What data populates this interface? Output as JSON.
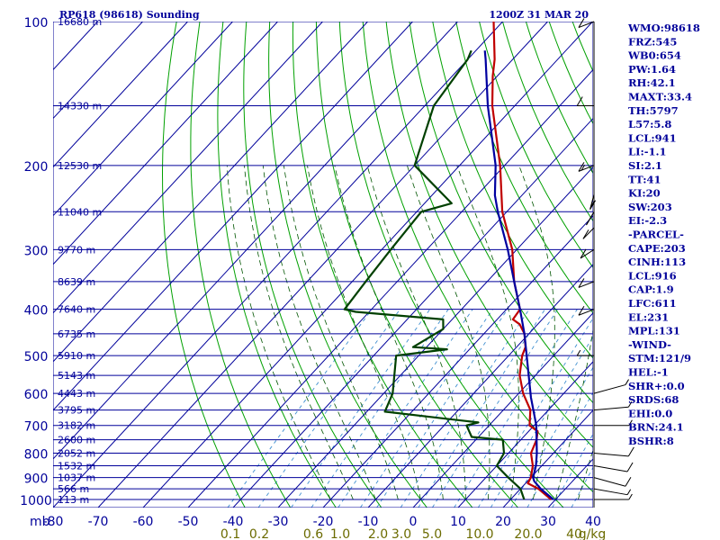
{
  "header": {
    "station": "RP618 (98618) Sounding",
    "time": "1200Z 31 MAR 20"
  },
  "chart_data": {
    "type": "line",
    "title": "RP618 (98618) Sounding",
    "pressure_axis": {
      "unit": "mb",
      "ticks": [
        100,
        200,
        300,
        400,
        500,
        600,
        700,
        800,
        900,
        1000
      ],
      "range": [
        100,
        1040
      ],
      "scale": "log"
    },
    "height_labels": [
      {
        "p": 100,
        "label": "16680 m"
      },
      {
        "p": 150,
        "label": "14330 m"
      },
      {
        "p": 200,
        "label": "12530 m"
      },
      {
        "p": 250,
        "label": "11040 m"
      },
      {
        "p": 300,
        "label": "9770 m"
      },
      {
        "p": 350,
        "label": "8639 m"
      },
      {
        "p": 400,
        "label": "7640 m"
      },
      {
        "p": 450,
        "label": "6735 m"
      },
      {
        "p": 500,
        "label": "5910 m"
      },
      {
        "p": 550,
        "label": "5143 m"
      },
      {
        "p": 600,
        "label": "4443 m"
      },
      {
        "p": 650,
        "label": "3795 m"
      },
      {
        "p": 700,
        "label": "3182 m"
      },
      {
        "p": 750,
        "label": "2600 m"
      },
      {
        "p": 800,
        "label": "2052 m"
      },
      {
        "p": 850,
        "label": "1532 m"
      },
      {
        "p": 900,
        "label": "1037 m"
      },
      {
        "p": 950,
        "label": "566 m"
      },
      {
        "p": 1000,
        "label": "113 m"
      }
    ],
    "temperature_axis": {
      "unit": "C",
      "range": [
        -80,
        40
      ],
      "ticks": [
        -80,
        -70,
        -60,
        -50,
        -40,
        -30,
        -20,
        -10,
        0,
        10,
        20,
        30,
        40
      ]
    },
    "mixing_ratio_labels": [
      "0.1",
      "0.2",
      "0.6",
      "1.0",
      "2.0",
      "3.0",
      "5.0",
      "10.0",
      "20.0",
      "40",
      "g/kg"
    ],
    "series": [
      {
        "name": "temperature",
        "color": "#c00000",
        "points": [
          {
            "p": 1000,
            "t": 29
          },
          {
            "p": 950,
            "t": 24
          },
          {
            "p": 925,
            "t": 20.5
          },
          {
            "p": 900,
            "t": 20
          },
          {
            "p": 850,
            "t": 18
          },
          {
            "p": 800,
            "t": 15
          },
          {
            "p": 750,
            "t": 13.5
          },
          {
            "p": 720,
            "t": 12
          },
          {
            "p": 700,
            "t": 9
          },
          {
            "p": 650,
            "t": 6
          },
          {
            "p": 600,
            "t": 1
          },
          {
            "p": 550,
            "t": -3.5
          },
          {
            "p": 500,
            "t": -7
          },
          {
            "p": 480,
            "t": -8
          },
          {
            "p": 450,
            "t": -11
          },
          {
            "p": 430,
            "t": -14
          },
          {
            "p": 420,
            "t": -16.5
          },
          {
            "p": 400,
            "t": -17
          },
          {
            "p": 350,
            "t": -24
          },
          {
            "p": 300,
            "t": -31
          },
          {
            "p": 250,
            "t": -41
          },
          {
            "p": 200,
            "t": -51
          },
          {
            "p": 150,
            "t": -65
          },
          {
            "p": 130,
            "t": -71
          },
          {
            "p": 120,
            "t": -74
          },
          {
            "p": 100,
            "t": -82
          }
        ]
      },
      {
        "name": "dewpoint",
        "color": "#004000",
        "points": [
          {
            "p": 1000,
            "t": 23
          },
          {
            "p": 950,
            "t": 20
          },
          {
            "p": 900,
            "t": 15
          },
          {
            "p": 850,
            "t": 10
          },
          {
            "p": 800,
            "t": 9
          },
          {
            "p": 750,
            "t": 6
          },
          {
            "p": 740,
            "t": -1.5
          },
          {
            "p": 700,
            "t": -5
          },
          {
            "p": 690,
            "t": -3
          },
          {
            "p": 655,
            "t": -26
          },
          {
            "p": 600,
            "t": -28
          },
          {
            "p": 500,
            "t": -35
          },
          {
            "p": 485,
            "t": -25
          },
          {
            "p": 480,
            "t": -33
          },
          {
            "p": 440,
            "t": -30
          },
          {
            "p": 420,
            "t": -32
          },
          {
            "p": 405,
            "t": -53
          },
          {
            "p": 400,
            "t": -56
          },
          {
            "p": 350,
            "t": -57
          },
          {
            "p": 300,
            "t": -58
          },
          {
            "p": 250,
            "t": -59
          },
          {
            "p": 240,
            "t": -54
          },
          {
            "p": 200,
            "t": -70
          },
          {
            "p": 150,
            "t": -78
          },
          {
            "p": 120,
            "t": -80
          },
          {
            "p": 115,
            "t": -81
          }
        ]
      },
      {
        "name": "parcel",
        "color": "#0000a0",
        "points": [
          {
            "p": 1000,
            "t": 29.5
          },
          {
            "p": 950,
            "t": 24.5
          },
          {
            "p": 916,
            "t": 21.5
          },
          {
            "p": 900,
            "t": 20.5
          },
          {
            "p": 850,
            "t": 18.7
          },
          {
            "p": 800,
            "t": 16.3
          },
          {
            "p": 700,
            "t": 10.5
          },
          {
            "p": 611,
            "t": 3.5
          },
          {
            "p": 500,
            "t": -6
          },
          {
            "p": 450,
            "t": -11
          },
          {
            "p": 400,
            "t": -17
          },
          {
            "p": 350,
            "t": -24
          },
          {
            "p": 300,
            "t": -32
          },
          {
            "p": 250,
            "t": -42
          },
          {
            "p": 231,
            "t": -46
          },
          {
            "p": 200,
            "t": -52
          },
          {
            "p": 150,
            "t": -66
          },
          {
            "p": 120,
            "t": -76
          },
          {
            "p": 115,
            "t": -78
          }
        ]
      }
    ],
    "grid": true
  },
  "indices": [
    "WMO:98618",
    "FRZ:545",
    "WB0:654",
    "PW:1.64",
    "RH:42.1",
    "MAXT:33.4",
    "TH:5797",
    "L57:5.8",
    "LCL:941",
    "LI:-1.1",
    "SI:2.1",
    "TT:41",
    "KI:20",
    "SW:203",
    "EI:-2.3",
    "-PARCEL-",
    "CAPE:203",
    "CINH:113",
    "LCL:916",
    "CAP:1.9",
    "LFC:611",
    "EL:231",
    "MPL:131",
    "-WIND-",
    "STM:121/9",
    "HEL:-1",
    "SHR+:0.0",
    "SRDS:68",
    "EHI:0.0",
    "BRN:24.1",
    "BSHR:8"
  ],
  "wind_barbs": [
    {
      "p": 1000,
      "dir": 90,
      "spd": 5
    },
    {
      "p": 950,
      "dir": 110,
      "spd": 5
    },
    {
      "p": 900,
      "dir": 120,
      "spd": 10
    },
    {
      "p": 850,
      "dir": 110,
      "spd": 10
    },
    {
      "p": 800,
      "dir": 100,
      "spd": 10
    },
    {
      "p": 700,
      "dir": 90,
      "spd": 5
    },
    {
      "p": 650,
      "dir": 80,
      "spd": 5
    },
    {
      "p": 600,
      "dir": 60,
      "spd": 5
    },
    {
      "p": 500,
      "dir": 270,
      "spd": 5
    },
    {
      "p": 400,
      "dir": 250,
      "spd": 10
    },
    {
      "p": 350,
      "dir": 250,
      "spd": 10
    },
    {
      "p": 300,
      "dir": 240,
      "spd": 10
    },
    {
      "p": 270,
      "dir": 230,
      "spd": 10
    },
    {
      "p": 250,
      "dir": 220,
      "spd": 10
    },
    {
      "p": 230,
      "dir": 210,
      "spd": 15
    },
    {
      "p": 200,
      "dir": 250,
      "spd": 15
    },
    {
      "p": 150,
      "dir": 270,
      "spd": 10
    },
    {
      "p": 100,
      "dir": 250,
      "spd": 10
    }
  ],
  "colors": {
    "isobar": "#00009a",
    "isotherm": "#00009a",
    "dry_adiabat": "#00a000",
    "moist_adiabat": "#005500",
    "mixing_ratio": "#3f8fd0",
    "mixing_label": "#6b6b00"
  }
}
